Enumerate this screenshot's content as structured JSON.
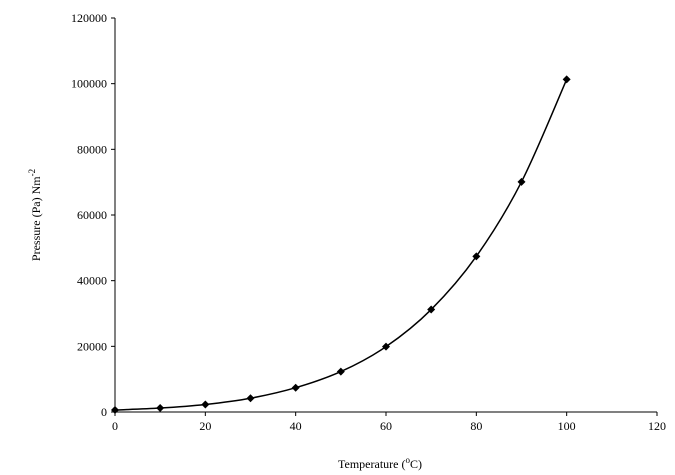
{
  "chart_data": {
    "type": "line",
    "smooth": true,
    "marker": "diamond",
    "color": "#000000",
    "xlabel": {
      "before": "Temperature (",
      "sup": "o",
      "after": "C)"
    },
    "ylabel": {
      "before": "Pressure (Pa) Nm",
      "sup": "-2"
    },
    "x": [
      0,
      10,
      20,
      30,
      40,
      50,
      60,
      70,
      80,
      90,
      100
    ],
    "values": [
      600,
      1200,
      2300,
      4200,
      7400,
      12300,
      19900,
      31200,
      47400,
      70100,
      101300
    ],
    "xlim": [
      0,
      120
    ],
    "xticks": [
      0,
      20,
      40,
      60,
      80,
      100,
      120
    ],
    "ylim": [
      0,
      120000
    ],
    "yticks": [
      0,
      20000,
      40000,
      60000,
      80000,
      100000,
      120000
    ]
  }
}
